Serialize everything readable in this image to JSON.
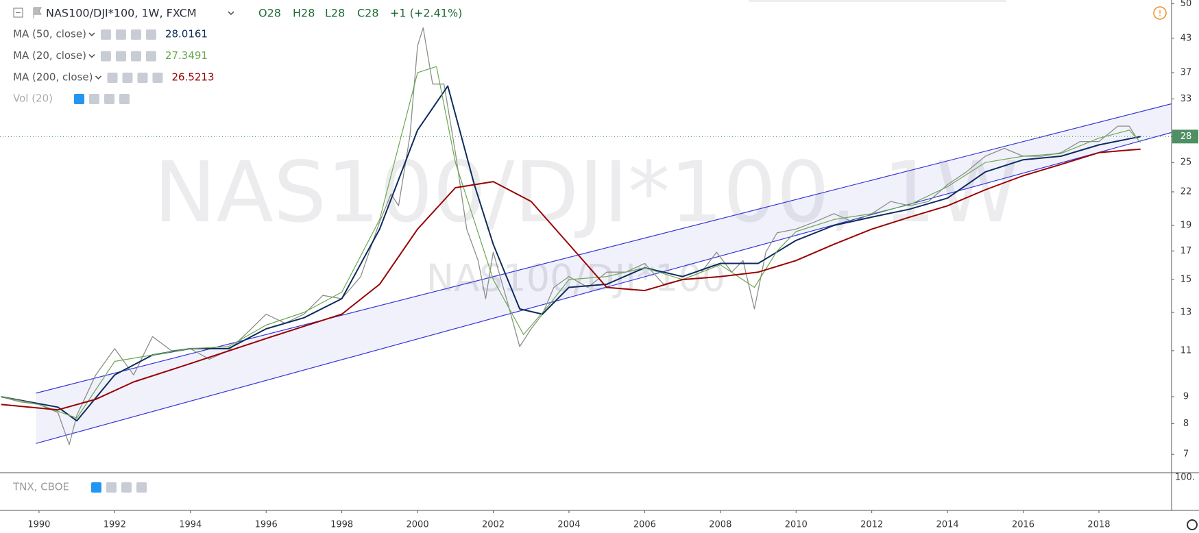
{
  "chart_data": {
    "type": "line",
    "title": "NAS100/DJI*100, 1W, FXCM",
    "ohlc": [
      "O28",
      "H28",
      "L28",
      "C28"
    ],
    "change": "+1 (+2.41%)",
    "watermark": "NAS100/DJI*100, 1W",
    "watermark_small": "NAS100/DJI*100",
    "log_scale": true,
    "grid": false,
    "xlim": [
      1988.97,
      2019.92
    ],
    "xticks": [
      1990,
      1992,
      1994,
      1996,
      1998,
      2000,
      2002,
      2004,
      2006,
      2008,
      2010,
      2012,
      2014,
      2016,
      2018
    ],
    "ylim": [
      6.46,
      50.8
    ],
    "yticks": [
      7,
      8,
      9,
      11,
      13,
      15,
      17,
      19,
      22,
      25,
      28,
      33,
      37,
      43,
      50
    ],
    "last_price": 28,
    "series": [
      {
        "color": "#8a8f86",
        "x": [
          1989.0,
          1989.5,
          1990.0,
          1990.5,
          1990.8,
          1991.0,
          1991.5,
          1992.0,
          1992.5,
          1993.0,
          1993.5,
          1994.0,
          1994.5,
          1995.0,
          1995.5,
          1996.0,
          1996.5,
          1997.0,
          1997.5,
          1998.0,
          1998.5,
          1999.0,
          1999.3,
          1999.5,
          1999.8,
          2000.0,
          2000.15,
          2000.4,
          2000.7,
          2001.0,
          2001.3,
          2001.6,
          2001.8,
          2002.0,
          2002.4,
          2002.7,
          2003.0,
          2003.3,
          2003.6,
          2004.0,
          2004.5,
          2005.0,
          2005.5,
          2006.0,
          2006.5,
          2007.0,
          2007.5,
          2007.9,
          2008.3,
          2008.6,
          2008.9,
          2009.2,
          2009.5,
          2010.0,
          2010.5,
          2011.0,
          2011.5,
          2012.0,
          2012.5,
          2013.0,
          2013.5,
          2014.0,
          2014.5,
          2015.0,
          2015.5,
          2016.0,
          2016.5,
          2017.0,
          2017.5,
          2018.0,
          2018.5,
          2018.8,
          2019.0,
          2019.1
        ],
        "values": [
          9,
          8.8,
          8.7,
          8.4,
          7.3,
          8.3,
          9.9,
          11.1,
          9.9,
          11.7,
          11,
          11.1,
          10.6,
          11,
          11.9,
          12.9,
          12.4,
          12.9,
          14,
          13.8,
          15.2,
          19.3,
          21.8,
          20.7,
          28.1,
          41.6,
          45,
          35.2,
          35.2,
          26.1,
          18.7,
          16.3,
          13.8,
          16.9,
          13.4,
          11.2,
          12.1,
          12.9,
          14.5,
          15.2,
          14.5,
          15.5,
          15.5,
          16.1,
          14.7,
          15,
          15.5,
          16.9,
          15.5,
          16.3,
          13.2,
          16.9,
          18.4,
          18.7,
          19.3,
          20,
          19.3,
          20,
          21.1,
          20.7,
          21.1,
          22.7,
          24,
          25.7,
          26.6,
          25.7,
          25.7,
          26.1,
          27.4,
          27.4,
          29.3,
          29.3,
          27.8,
          28
        ]
      },
      {
        "name": "MA (50, close)",
        "legend_value": 28.0161,
        "color": "#0c2c5c",
        "x": [
          1989,
          1990.5,
          1991,
          1992,
          1993,
          1994,
          1995,
          1996,
          1997,
          1998,
          1999,
          2000,
          2000.8,
          2001.5,
          2002,
          2002.7,
          2003.3,
          2004,
          2005,
          2006,
          2007,
          2008,
          2009,
          2010,
          2011,
          2012,
          2013,
          2014,
          2015,
          2016,
          2017,
          2018,
          2019.1
        ],
        "values": [
          9,
          8.6,
          8.1,
          9.9,
          10.8,
          11.1,
          11.1,
          12.1,
          12.7,
          13.8,
          18.7,
          28.8,
          34.9,
          22.7,
          17.5,
          13.2,
          12.9,
          14.5,
          14.7,
          15.8,
          15.2,
          16.1,
          16.1,
          17.8,
          19,
          19.7,
          20.4,
          21.4,
          24,
          25.3,
          25.7,
          27,
          28
        ]
      },
      {
        "name": "MA (20, close)",
        "legend_value": 27.3491,
        "color": "#6aa84f",
        "x": [
          1989,
          1990,
          1991,
          1992,
          1993,
          1994,
          1995,
          1996,
          1997,
          1998,
          1999,
          2000,
          2000.5,
          2001,
          2002,
          2002.8,
          2003.5,
          2004,
          2005,
          2006,
          2007,
          2008,
          2008.9,
          2009.5,
          2010,
          2011,
          2012,
          2013,
          2014,
          2015,
          2016,
          2017,
          2018,
          2018.8,
          2019.1
        ],
        "values": [
          9,
          8.7,
          8.2,
          10.5,
          10.8,
          11.1,
          11.2,
          12.3,
          13,
          14.2,
          19.5,
          37,
          38,
          25,
          15,
          11.8,
          13.5,
          15,
          15.2,
          15.8,
          15,
          16,
          14.5,
          17,
          18.5,
          19.5,
          20,
          20.8,
          22.5,
          25,
          25.7,
          26,
          27.8,
          28.8,
          27.3
        ]
      },
      {
        "name": "MA (200, close)",
        "legend_value": 26.5213,
        "color": "#990000",
        "x": [
          1989,
          1990.5,
          1991.5,
          1992.5,
          1994,
          1996,
          1998,
          1999,
          2000,
          2001,
          2002,
          2003,
          2004,
          2005,
          2006,
          2007,
          2008,
          2009,
          2010,
          2011,
          2012,
          2013,
          2014,
          2015,
          2016,
          2017,
          2018,
          2019.1
        ],
        "values": [
          8.7,
          8.5,
          8.9,
          9.6,
          10.4,
          11.6,
          12.9,
          14.7,
          18.7,
          22.4,
          23,
          21.1,
          17.5,
          14.5,
          14.3,
          15,
          15.2,
          15.5,
          16.3,
          17.5,
          18.7,
          19.7,
          20.7,
          22.2,
          23.6,
          24.8,
          26.1,
          26.5
        ]
      }
    ],
    "channel": {
      "color": "#3535d8",
      "x": [
        1989.92,
        2019.92
      ],
      "upper": [
        9.14,
        32.3
      ],
      "lower": [
        7.34,
        28.5
      ]
    },
    "volume_label": "Vol (20)",
    "lower_pane": {
      "title": "TNX, CBOE",
      "axis_label": "100."
    }
  }
}
